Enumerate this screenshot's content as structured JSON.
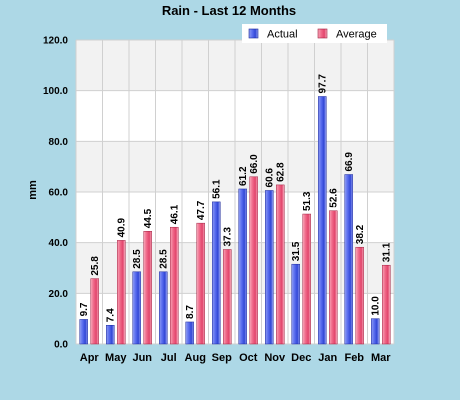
{
  "chart_data": {
    "type": "bar",
    "title": "Rain - Last 12 Months",
    "ylabel": "mm",
    "xlabel": "",
    "ylim": [
      0,
      120
    ],
    "yticks": [
      "0.0",
      "20.0",
      "40.0",
      "60.0",
      "80.0",
      "100.0",
      "120.0"
    ],
    "categories": [
      "Apr",
      "May",
      "Jun",
      "Jul",
      "Aug",
      "Sep",
      "Oct",
      "Nov",
      "Dec",
      "Jan",
      "Feb",
      "Mar"
    ],
    "series": [
      {
        "name": "Actual",
        "color": "#4a5ee0",
        "values": [
          9.7,
          7.4,
          28.5,
          28.5,
          8.7,
          56.1,
          61.2,
          60.6,
          31.5,
          97.7,
          66.9,
          10.0
        ],
        "labels": [
          "9.7",
          "7.4",
          "28.5",
          "28.5",
          "8.7",
          "56.1",
          "61.2",
          "60.6",
          "31.5",
          "97.7",
          "66.9",
          "10.0"
        ]
      },
      {
        "name": "Average",
        "color": "#f06a8a",
        "values": [
          25.8,
          40.9,
          44.5,
          46.1,
          47.7,
          37.3,
          66.0,
          62.8,
          51.3,
          52.6,
          38.2,
          31.1
        ],
        "labels": [
          "25.8",
          "40.9",
          "44.5",
          "46.1",
          "47.7",
          "37.3",
          "66.0",
          "62.8",
          "51.3",
          "52.6",
          "38.2",
          "31.1"
        ]
      }
    ],
    "grid": true,
    "legend_position": "top-right"
  }
}
